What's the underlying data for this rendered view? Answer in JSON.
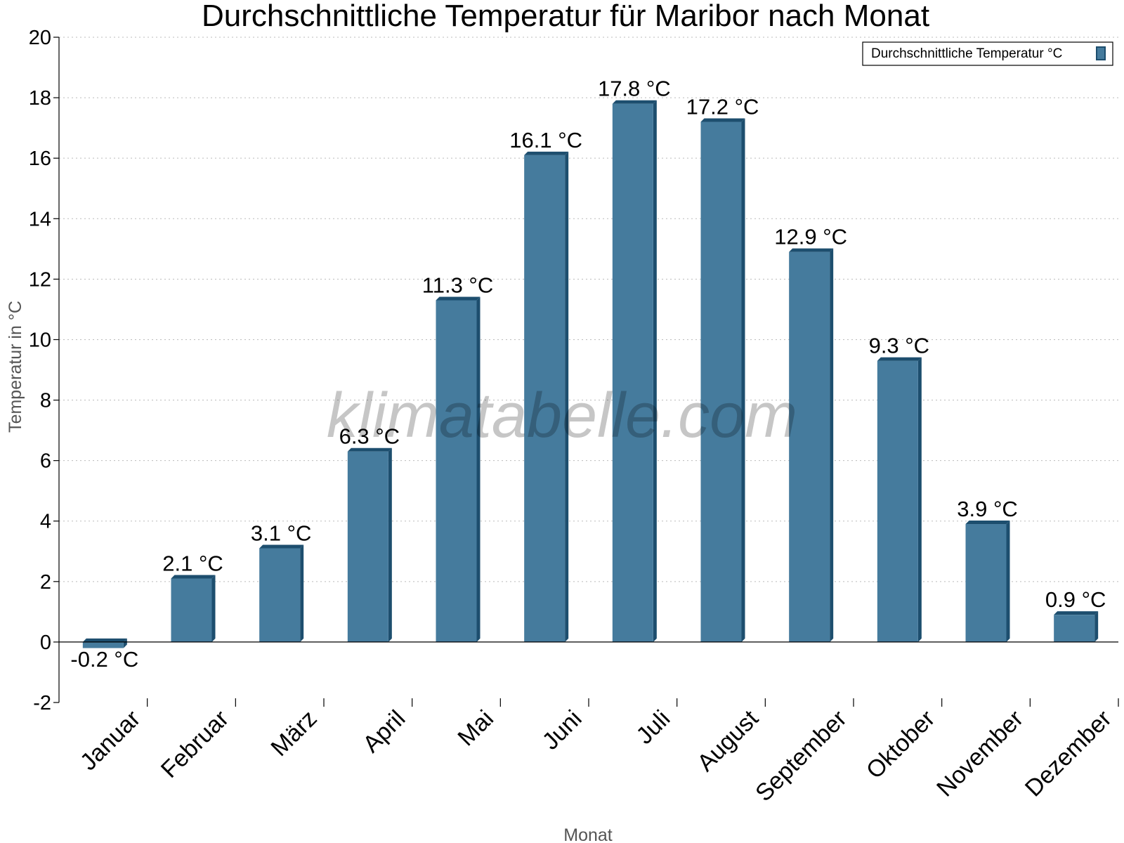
{
  "chart_data": {
    "type": "bar",
    "title": "Durchschnittliche Temperatur für Maribor nach Monat",
    "xlabel": "Monat",
    "ylabel": "Temperatur in °C",
    "ylim": [
      -2,
      20
    ],
    "yticks": [
      -2,
      0,
      2,
      4,
      6,
      8,
      10,
      12,
      14,
      16,
      18,
      20
    ],
    "grid": "horizontal dotted",
    "legend_position": "top-right",
    "categories": [
      "Januar",
      "Februar",
      "März",
      "April",
      "Mai",
      "Juni",
      "Juli",
      "August",
      "September",
      "Oktober",
      "November",
      "Dezember"
    ],
    "series": [
      {
        "name": "Durchschnittliche Temperatur °C",
        "values": [
          -0.2,
          2.1,
          3.1,
          6.3,
          11.3,
          16.1,
          17.8,
          17.2,
          12.9,
          9.3,
          3.9,
          0.9
        ],
        "labels": [
          "-0.2 °C",
          "2.1 °C",
          "3.1 °C",
          "6.3 °C",
          "11.3 °C",
          "16.1 °C",
          "17.8 °C",
          "17.2 °C",
          "12.9 °C",
          "9.3 °C",
          "3.9 °C",
          "0.9 °C"
        ],
        "color": "#457b9d",
        "side_color": "#1d4e6e"
      }
    ]
  },
  "watermark": "klimatabelle.com"
}
